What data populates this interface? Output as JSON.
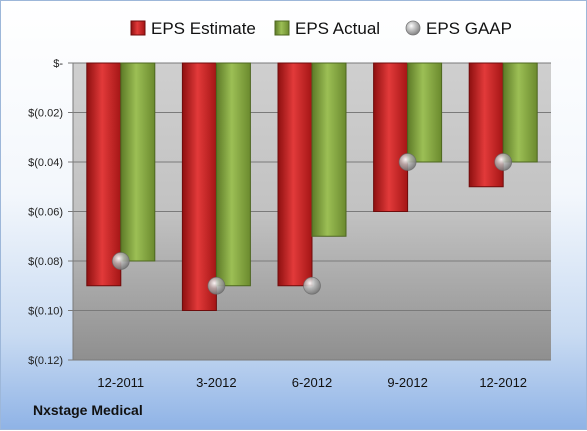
{
  "company": "Nxstage Medical",
  "chart_data": {
    "type": "bar",
    "categories": [
      "12-2011",
      "3-2012",
      "6-2012",
      "9-2012",
      "12-2012"
    ],
    "series": [
      {
        "name": "EPS Estimate",
        "kind": "bar",
        "color": "#cc1f1f",
        "values": [
          -0.09,
          -0.1,
          -0.09,
          -0.06,
          -0.05
        ]
      },
      {
        "name": "EPS Actual",
        "kind": "bar",
        "color": "#7fa13a",
        "values": [
          -0.08,
          -0.09,
          -0.07,
          -0.04,
          -0.04
        ]
      },
      {
        "name": "EPS GAAP",
        "kind": "marker",
        "color": "#a6a6a6",
        "values": [
          -0.08,
          -0.09,
          -0.09,
          -0.04,
          -0.04
        ]
      }
    ],
    "y_ticks": [
      0,
      -0.02,
      -0.04,
      -0.06,
      -0.08,
      -0.1,
      -0.12
    ],
    "y_tick_labels": [
      "$-",
      "$(0.02)",
      "$(0.04)",
      "$(0.06)",
      "$(0.08)",
      "$(0.10)",
      "$(0.12)"
    ],
    "ylim": [
      -0.12,
      0
    ],
    "legend_position": "top",
    "grid": true
  }
}
